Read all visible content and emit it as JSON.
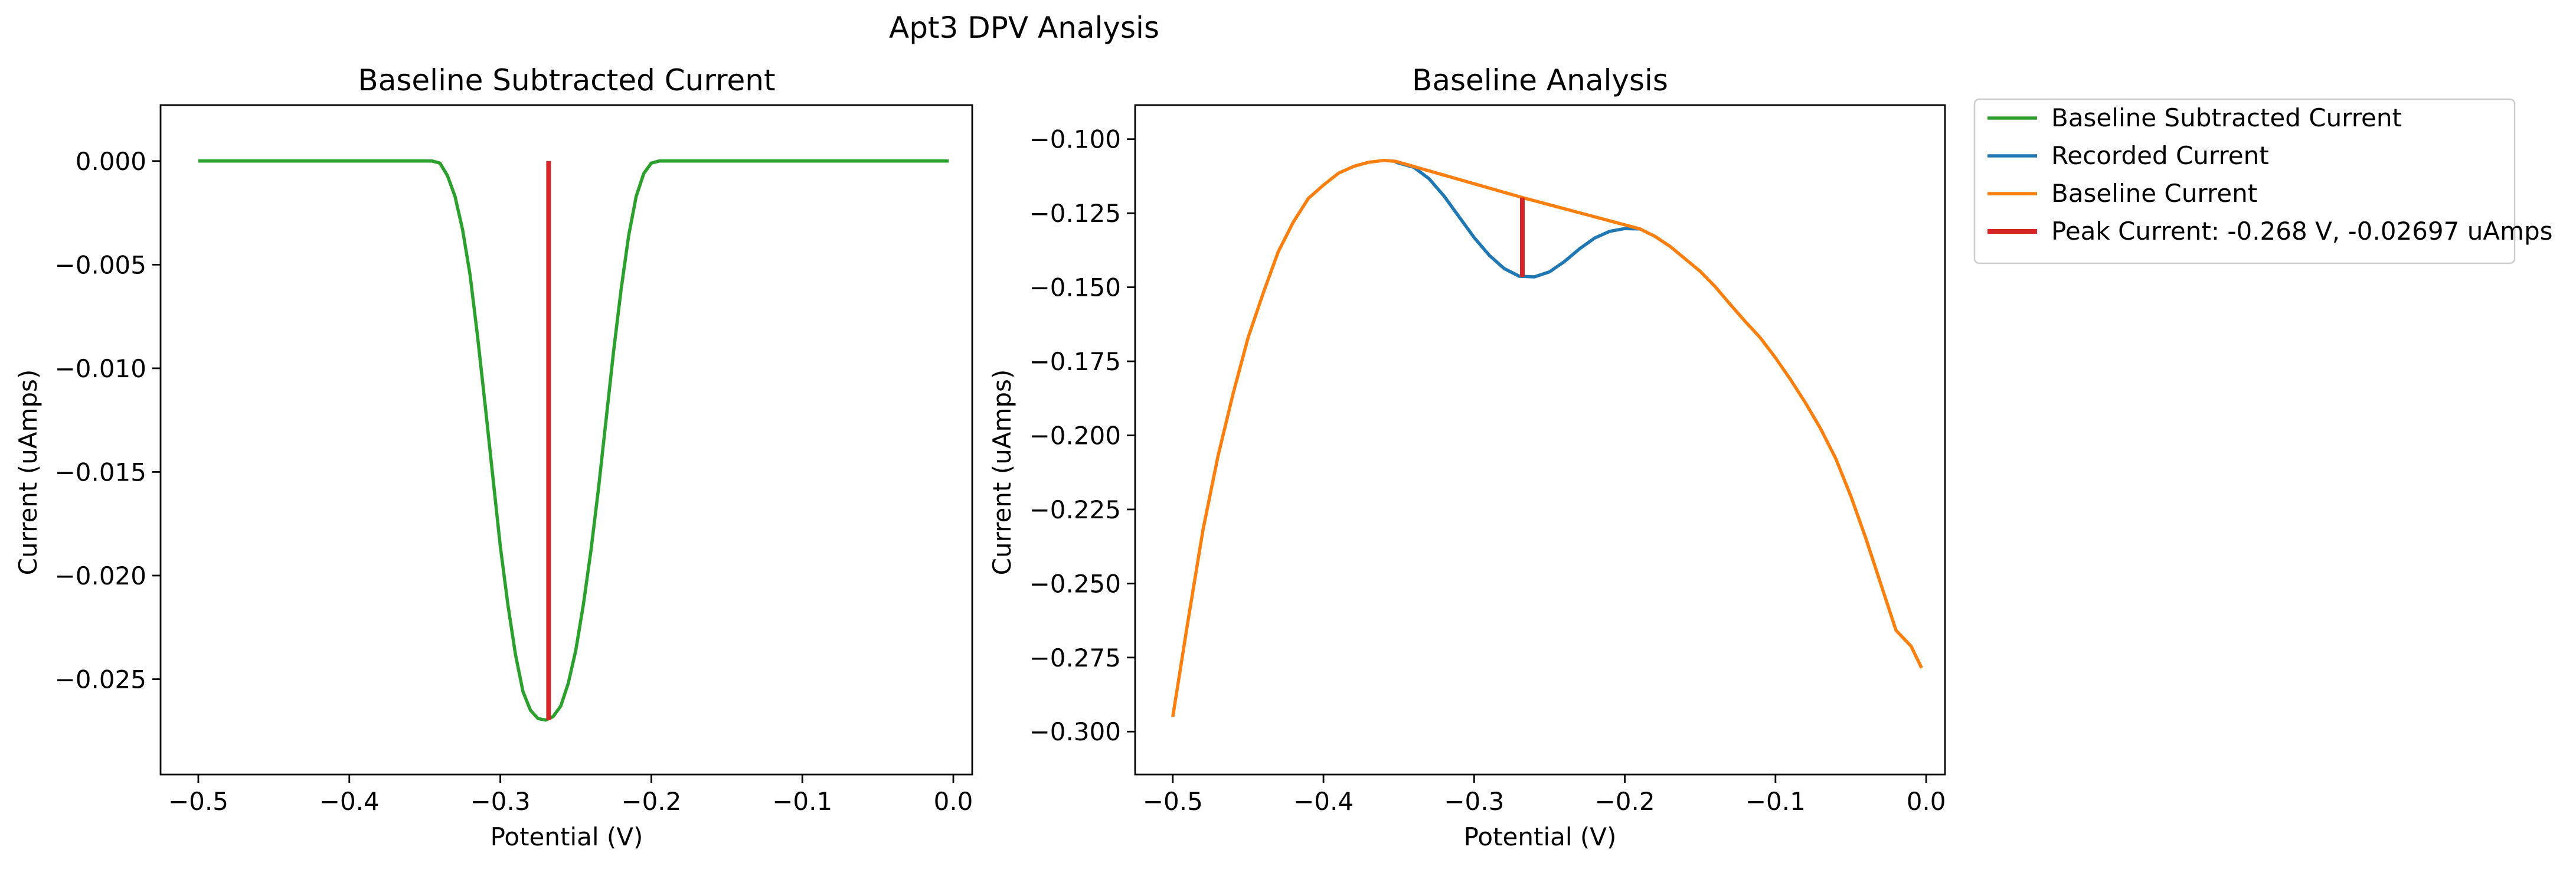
{
  "figure": {
    "title": "Apt3 DPV Analysis"
  },
  "colors": {
    "green": "#2ca02c",
    "blue": "#1f77b4",
    "orange": "#ff7f0e",
    "red": "#d62728"
  },
  "chart_data": [
    {
      "type": "line",
      "title": "Baseline Subtracted Current",
      "xlabel": "Potential (V)",
      "ylabel": "Current (uAmps)",
      "xlim": [
        -0.525,
        0.0125
      ],
      "ylim": [
        -0.0296,
        0.0027
      ],
      "xticks": [
        -0.5,
        -0.4,
        -0.3,
        -0.2,
        -0.1,
        0.0
      ],
      "xtick_labels": [
        "−0.5",
        "−0.4",
        "−0.3",
        "−0.2",
        "−0.1",
        "0.0"
      ],
      "yticks": [
        0.0,
        -0.005,
        -0.01,
        -0.015,
        -0.02,
        -0.025
      ],
      "ytick_labels": [
        "0.000",
        "−0.005",
        "−0.010",
        "−0.015",
        "−0.020",
        "−0.025"
      ],
      "series": [
        {
          "name": "Baseline Subtracted Current",
          "color": "#2ca02c",
          "x": [
            -0.5,
            -0.35,
            -0.345,
            -0.34,
            -0.335,
            -0.33,
            -0.325,
            -0.32,
            -0.315,
            -0.31,
            -0.305,
            -0.3,
            -0.295,
            -0.29,
            -0.285,
            -0.28,
            -0.275,
            -0.27,
            -0.265,
            -0.26,
            -0.255,
            -0.25,
            -0.245,
            -0.24,
            -0.235,
            -0.23,
            -0.225,
            -0.22,
            -0.215,
            -0.21,
            -0.205,
            -0.2,
            -0.195,
            -0.19,
            -0.185,
            -0.18,
            -0.003
          ],
          "y": [
            0.0,
            0.0,
            0.0,
            -0.0001,
            -0.0007,
            -0.0017,
            -0.0033,
            -0.0055,
            -0.0085,
            -0.0118,
            -0.0152,
            -0.0186,
            -0.0214,
            -0.0238,
            -0.0256,
            -0.0265,
            -0.0269,
            -0.02697,
            -0.0268,
            -0.0263,
            -0.0252,
            -0.0236,
            -0.0214,
            -0.0188,
            -0.0158,
            -0.0125,
            -0.0092,
            -0.0062,
            -0.0036,
            -0.0017,
            -0.0006,
            -0.0001,
            0.0,
            0.0,
            0.0,
            0.0,
            0.0
          ]
        },
        {
          "name": "Peak Current: -0.268 V, -0.02697 uAmps",
          "color": "#d62728",
          "x": [
            -0.268,
            -0.268
          ],
          "y": [
            0.0,
            -0.02697
          ]
        }
      ]
    },
    {
      "type": "line",
      "title": "Baseline Analysis",
      "xlabel": "Potential (V)",
      "ylabel": "Current (uAmps)",
      "xlim": [
        -0.525,
        0.0125
      ],
      "ylim": [
        -0.3145,
        -0.0885
      ],
      "xticks": [
        -0.5,
        -0.4,
        -0.3,
        -0.2,
        -0.1,
        0.0
      ],
      "xtick_labels": [
        "−0.5",
        "−0.4",
        "−0.3",
        "−0.2",
        "−0.1",
        "0.0"
      ],
      "yticks": [
        -0.1,
        -0.125,
        -0.15,
        -0.175,
        -0.2,
        -0.225,
        -0.25,
        -0.275,
        -0.3
      ],
      "ytick_labels": [
        "−0.100",
        "−0.125",
        "−0.150",
        "−0.175",
        "−0.200",
        "−0.225",
        "−0.250",
        "−0.275",
        "−0.300"
      ],
      "series": [
        {
          "name": "Recorded Current",
          "color": "#1f77b4",
          "x": [
            -0.352,
            -0.34,
            -0.33,
            -0.32,
            -0.31,
            -0.3,
            -0.29,
            -0.28,
            -0.27,
            -0.26,
            -0.25,
            -0.24,
            -0.23,
            -0.22,
            -0.21,
            -0.2,
            -0.19
          ],
          "y": [
            -0.1078,
            -0.1095,
            -0.1133,
            -0.1192,
            -0.1262,
            -0.1332,
            -0.1392,
            -0.1437,
            -0.1463,
            -0.1465,
            -0.1448,
            -0.1413,
            -0.137,
            -0.1334,
            -0.1311,
            -0.1302,
            -0.1303
          ]
        },
        {
          "name": "Baseline Current",
          "color": "#ff7f0e",
          "x": [
            -0.5,
            -0.49,
            -0.48,
            -0.47,
            -0.46,
            -0.45,
            -0.44,
            -0.43,
            -0.42,
            -0.41,
            -0.4,
            -0.39,
            -0.38,
            -0.37,
            -0.36,
            -0.352,
            -0.268,
            -0.19,
            -0.18,
            -0.17,
            -0.16,
            -0.15,
            -0.14,
            -0.13,
            -0.12,
            -0.11,
            -0.1,
            -0.09,
            -0.08,
            -0.07,
            -0.06,
            -0.05,
            -0.04,
            -0.03,
            -0.02,
            -0.01,
            -0.003
          ],
          "y": [
            -0.295,
            -0.263,
            -0.232,
            -0.207,
            -0.186,
            -0.167,
            -0.152,
            -0.138,
            -0.128,
            -0.12,
            -0.1155,
            -0.1115,
            -0.1092,
            -0.1078,
            -0.1072,
            -0.1075,
            -0.1197,
            -0.1303,
            -0.1328,
            -0.1362,
            -0.1404,
            -0.1446,
            -0.1498,
            -0.1558,
            -0.1616,
            -0.1671,
            -0.1738,
            -0.1812,
            -0.1891,
            -0.1978,
            -0.2078,
            -0.2205,
            -0.2348,
            -0.2503,
            -0.2658,
            -0.2712,
            -0.2785
          ]
        },
        {
          "name": "Peak Current: -0.268 V, -0.02697 uAmps",
          "color": "#d62728",
          "x": [
            -0.268,
            -0.268
          ],
          "y": [
            -0.1197,
            -0.1465
          ]
        }
      ]
    }
  ],
  "legend": {
    "placement": "outside-right",
    "items": [
      {
        "label": "Baseline Subtracted Current",
        "color": "#2ca02c",
        "thick": false
      },
      {
        "label": "Recorded Current",
        "color": "#1f77b4",
        "thick": false
      },
      {
        "label": "Baseline Current",
        "color": "#ff7f0e",
        "thick": false
      },
      {
        "label": "Peak Current: -0.268 V, -0.02697 uAmps",
        "color": "#d62728",
        "thick": true
      }
    ]
  }
}
